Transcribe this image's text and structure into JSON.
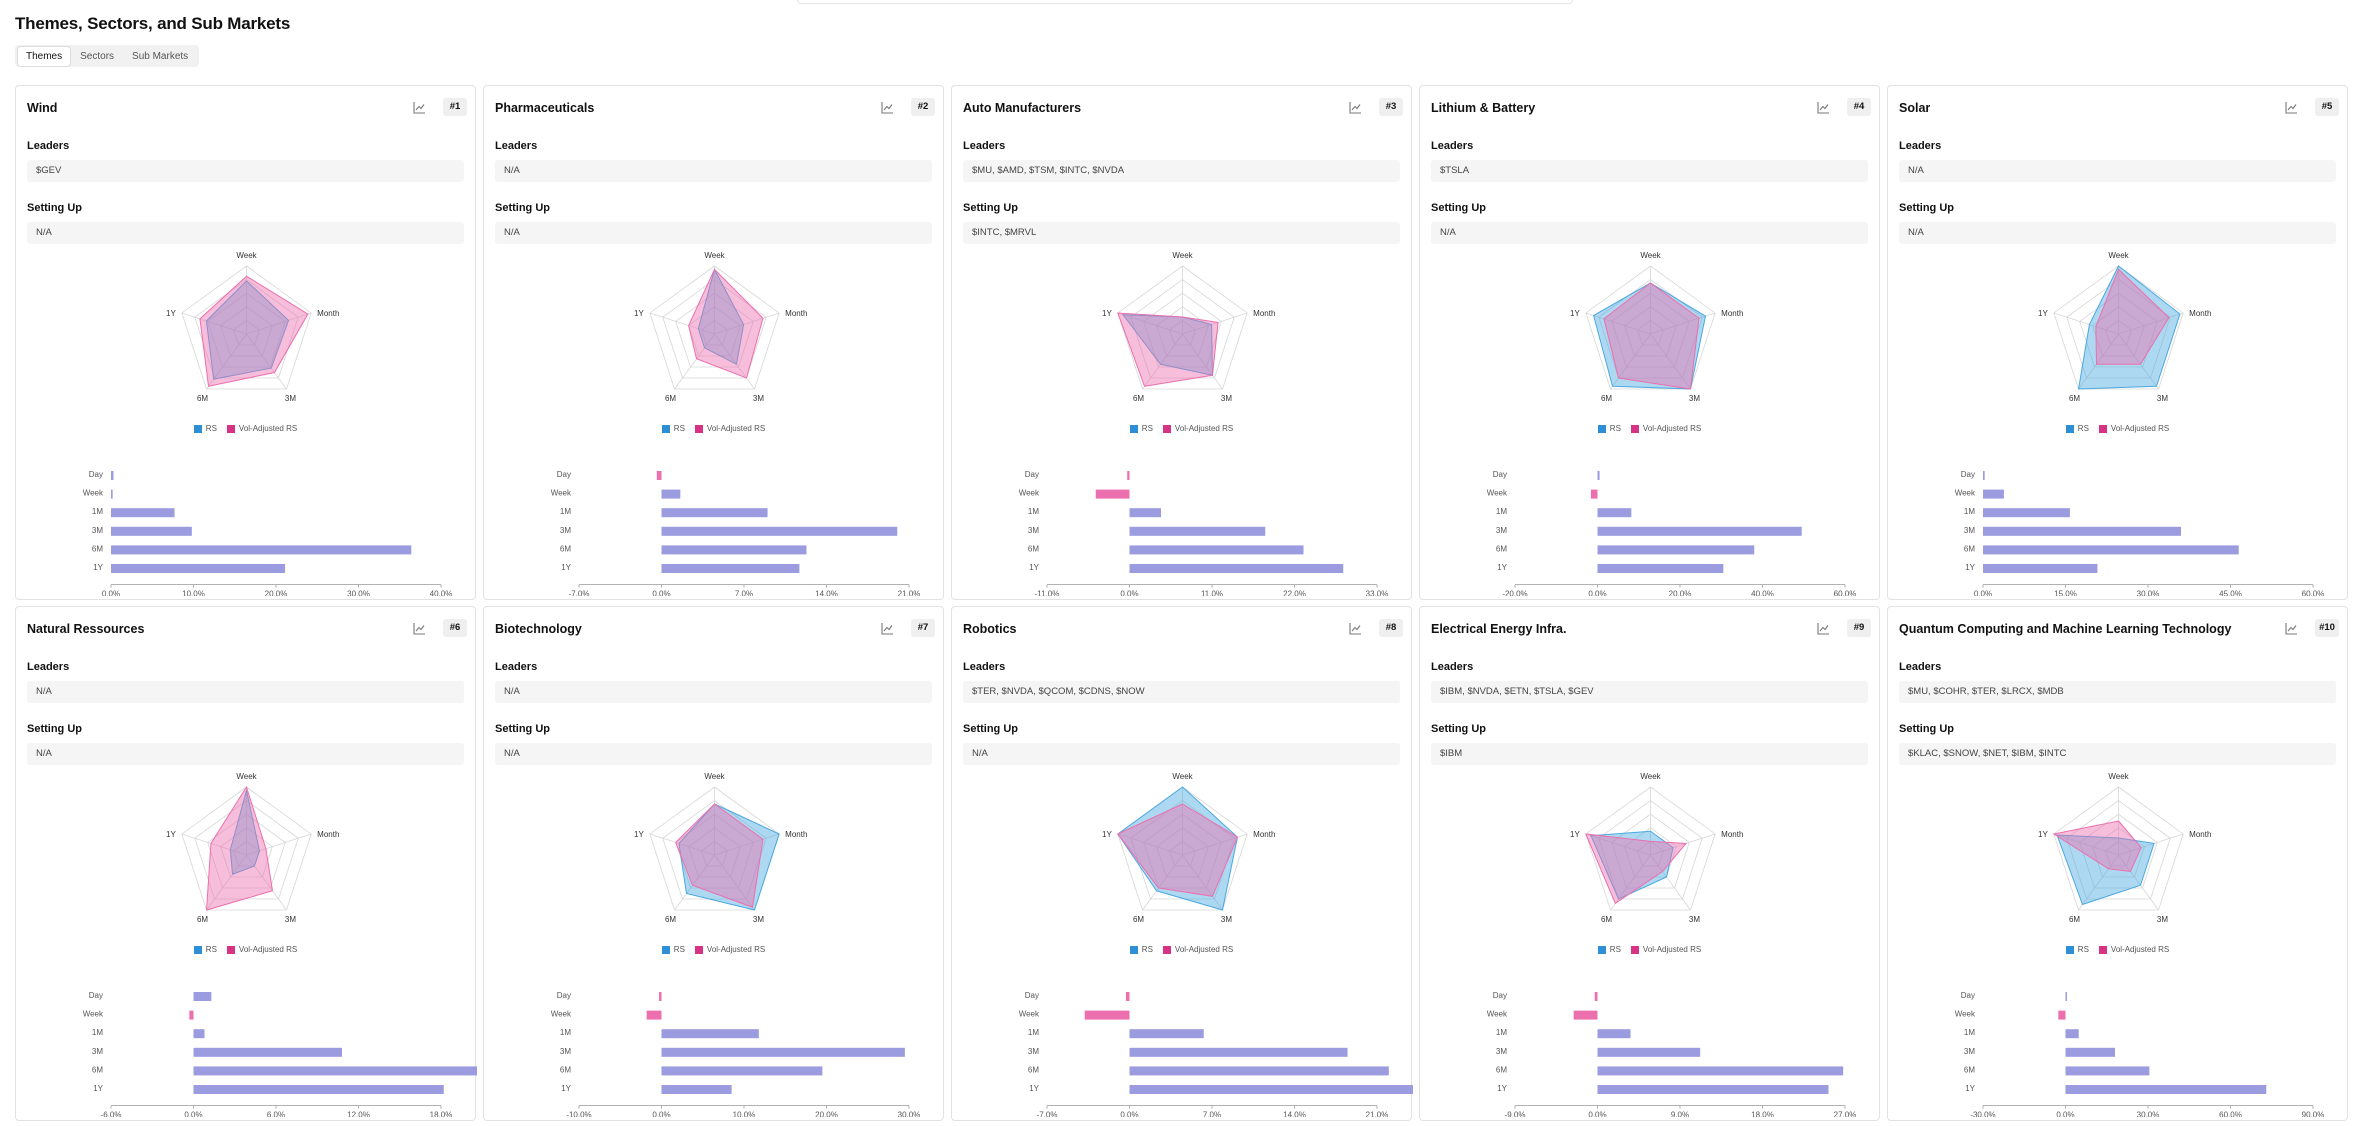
{
  "page": {
    "title": "Themes, Sectors, and Sub Markets",
    "tabs": [
      {
        "label": "Themes",
        "active": true
      },
      {
        "label": "Sectors",
        "active": false
      },
      {
        "label": "Sub Markets",
        "active": false
      }
    ]
  },
  "labels": {
    "leaders": "Leaders",
    "setting_up": "Setting Up",
    "legend_rs": "RS",
    "legend_vol": "Vol-Adjusted RS",
    "periods_radar": [
      "Week",
      "Month",
      "3M",
      "6M",
      "1Y"
    ],
    "periods_bars": [
      "Day",
      "Week",
      "1M",
      "3M",
      "6M",
      "1Y"
    ]
  },
  "colors": {
    "rs": "#4aa8e0",
    "vol": "#ec6fae",
    "bar_pos": "#9b9be0",
    "bar_neg": "#ec6fae",
    "legend_rs": "#2f8fd6",
    "legend_vol": "#d63384"
  },
  "icons": {
    "chart": "line-chart-icon"
  },
  "cards": [
    {
      "title": "Wind",
      "rank": "#1",
      "leaders": "$GEV",
      "setting_up": "N/A",
      "radar_rs": [
        0.78,
        0.65,
        0.62,
        0.82,
        0.62
      ],
      "radar_vol": [
        0.85,
        0.95,
        0.7,
        0.95,
        0.72
      ],
      "bars": [
        0.3,
        0.2,
        7.7,
        9.8,
        36.4,
        21.1
      ],
      "axis": {
        "min": 0,
        "max": 40,
        "ticks": [
          "0.0%",
          "10.0%",
          "20.0%",
          "30.0%",
          "40.0%"
        ]
      }
    },
    {
      "title": "Pharmaceuticals",
      "rank": "#2",
      "leaders": "N/A",
      "setting_up": "N/A",
      "radar_rs": [
        0.95,
        0.45,
        0.55,
        0.25,
        0.25
      ],
      "radar_vol": [
        0.95,
        0.75,
        0.8,
        0.45,
        0.4
      ],
      "bars": [
        -0.4,
        1.6,
        9.0,
        20.0,
        12.3,
        11.7
      ],
      "axis": {
        "min": -7,
        "max": 21,
        "ticks": [
          "-7.0%",
          "0.0%",
          "7.0%",
          "14.0%",
          "21.0%"
        ]
      }
    },
    {
      "title": "Auto Manufacturers",
      "rank": "#3",
      "leaders": "$MU, $AMD, $TSM, $INTC, $NVDA",
      "setting_up": "$INTC, $MRVL",
      "radar_rs": [
        0.25,
        0.45,
        0.75,
        0.55,
        0.92
      ],
      "radar_vol": [
        0.25,
        0.55,
        0.75,
        0.95,
        1.0
      ],
      "bars": [
        -0.3,
        -4.5,
        4.2,
        18.1,
        23.2,
        28.5
      ],
      "axis": {
        "min": -11,
        "max": 33,
        "ticks": [
          "-11.0%",
          "0.0%",
          "11.0%",
          "22.0%",
          "33.0%"
        ]
      }
    },
    {
      "title": "Lithium & Battery",
      "rank": "#4",
      "leaders": "$TSLA",
      "setting_up": "N/A",
      "radar_rs": [
        0.75,
        0.85,
        1.0,
        0.95,
        0.88
      ],
      "radar_vol": [
        0.75,
        0.75,
        1.0,
        0.8,
        0.72
      ],
      "bars": [
        0.5,
        -1.6,
        8.2,
        49.5,
        38.0,
        30.5
      ],
      "axis": {
        "min": -20,
        "max": 60,
        "ticks": [
          "-20.0%",
          "0.0%",
          "20.0%",
          "40.0%",
          "60.0%"
        ]
      }
    },
    {
      "title": "Solar",
      "rank": "#5",
      "leaders": "N/A",
      "setting_up": "N/A",
      "radar_rs": [
        1.0,
        0.95,
        0.95,
        1.0,
        0.45
      ],
      "radar_vol": [
        0.95,
        0.78,
        0.55,
        0.55,
        0.35
      ],
      "bars": [
        0.3,
        3.8,
        15.8,
        36.0,
        46.5,
        20.8
      ],
      "axis": {
        "min": 0,
        "max": 60,
        "ticks": [
          "0.0%",
          "15.0%",
          "30.0%",
          "45.0%",
          "60.0%"
        ]
      }
    },
    {
      "title": "Natural Ressources",
      "rank": "#6",
      "leaders": "N/A",
      "setting_up": "N/A",
      "radar_rs": [
        0.95,
        0.2,
        0.2,
        0.35,
        0.25
      ],
      "radar_vol": [
        1.0,
        0.3,
        0.65,
        1.0,
        0.55
      ],
      "bars": [
        1.3,
        -0.3,
        0.8,
        10.8,
        26.8,
        18.2
      ],
      "axis": {
        "min": -6,
        "max": 18,
        "ticks": [
          "-6.0%",
          "0.0%",
          "6.0%",
          "12.0%",
          "18.0%"
        ]
      }
    },
    {
      "title": "Biotechnology",
      "rank": "#7",
      "leaders": "N/A",
      "setting_up": "N/A",
      "radar_rs": [
        0.75,
        1.0,
        1.0,
        0.7,
        0.55
      ],
      "radar_vol": [
        0.75,
        0.75,
        0.95,
        0.55,
        0.6
      ],
      "bars": [
        -0.3,
        -1.8,
        11.8,
        29.5,
        19.5,
        8.5
      ],
      "axis": {
        "min": -10,
        "max": 30,
        "ticks": [
          "-10.0%",
          "0.0%",
          "10.0%",
          "20.0%",
          "30.0%"
        ]
      }
    },
    {
      "title": "Robotics",
      "rank": "#8",
      "leaders": "$TER, $NVDA, $QCOM, $CDNS, $NOW",
      "setting_up": "N/A",
      "radar_rs": [
        1.0,
        0.85,
        1.0,
        0.65,
        1.0
      ],
      "radar_vol": [
        0.75,
        0.85,
        0.75,
        0.6,
        1.0
      ],
      "bars": [
        -0.3,
        -3.8,
        6.3,
        18.5,
        22.0,
        29.3
      ],
      "axis": {
        "min": -7,
        "max": 21,
        "ticks": [
          "-7.0%",
          "0.0%",
          "7.0%",
          "14.0%",
          "21.0%"
        ]
      }
    },
    {
      "title": "Electrical Energy Infra.",
      "rank": "#9",
      "leaders": "$IBM, $NVDA, $ETN, $TSLA, $GEV",
      "setting_up": "$IBM",
      "radar_rs": [
        0.35,
        0.35,
        0.4,
        0.8,
        0.92
      ],
      "radar_vol": [
        0.2,
        0.55,
        0.3,
        0.88,
        1.0
      ],
      "bars": [
        -0.3,
        -2.6,
        3.6,
        11.2,
        26.8,
        25.2
      ],
      "axis": {
        "min": -9,
        "max": 27,
        "ticks": [
          "-9.0%",
          "0.0%",
          "9.0%",
          "18.0%",
          "27.0%"
        ]
      }
    },
    {
      "title": "Quantum Computing and Machine Learning Technology",
      "rank": "#10",
      "leaders": "$MU, $COHR, $TER, $LRCX, $MDB",
      "setting_up": "$KLAC, $SNOW, $NET, $IBM, $INTC",
      "radar_rs": [
        0.25,
        0.55,
        0.55,
        0.9,
        0.95
      ],
      "radar_vol": [
        0.5,
        0.35,
        0.3,
        0.25,
        1.0
      ],
      "bars": [
        0.1,
        -2.6,
        4.8,
        18.0,
        30.5,
        73.0
      ],
      "axis": {
        "min": -30,
        "max": 90,
        "ticks": [
          "-30.0%",
          "0.0%",
          "30.0%",
          "60.0%",
          "90.0%"
        ]
      }
    }
  ]
}
